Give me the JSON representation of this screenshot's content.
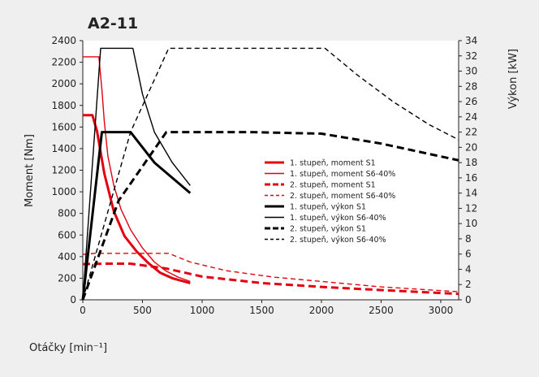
{
  "chart_data": {
    "type": "line",
    "title": "A2-11",
    "xlabel": "Otáčky [min⁻¹]",
    "ylabel_left": "Moment [Nm]",
    "ylabel_right": "Výkon [kW]",
    "xlim": [
      0,
      3150
    ],
    "ylim_left": [
      0,
      2400
    ],
    "ylim_right": [
      0,
      34
    ],
    "x_ticks": [
      0,
      500,
      1000,
      1500,
      2000,
      2500,
      3000
    ],
    "y_ticks_left": [
      0,
      200,
      400,
      600,
      800,
      1000,
      1200,
      1400,
      1600,
      1800,
      2000,
      2200,
      2400
    ],
    "y_ticks_right": [
      0,
      2,
      4,
      6,
      8,
      10,
      12,
      14,
      16,
      18,
      20,
      22,
      24,
      26,
      28,
      30,
      32,
      34
    ],
    "grid": false,
    "legend_position": "center-right",
    "series": [
      {
        "name": "1. stupeň, moment S1",
        "axis": "left",
        "color": "#e3000f",
        "style": "thick",
        "x": [
          0,
          80,
          120,
          180,
          260,
          350,
          450,
          550,
          650,
          750,
          900
        ],
        "y": [
          1710,
          1710,
          1560,
          1170,
          820,
          590,
          450,
          340,
          250,
          200,
          155
        ]
      },
      {
        "name": "1. stupeň, moment S6-40%",
        "axis": "left",
        "color": "#e3000f",
        "style": "thin",
        "x": [
          0,
          135,
          160,
          180,
          210,
          260,
          320,
          400,
          500,
          600,
          700,
          800,
          900
        ],
        "y": [
          2250,
          2250,
          1950,
          1650,
          1330,
          1060,
          840,
          650,
          480,
          350,
          265,
          210,
          170
        ]
      },
      {
        "name": "2. stupeň, moment S1",
        "axis": "left",
        "color": "#e3000f",
        "style": "thick-dashed",
        "x": [
          0,
          200,
          400,
          700,
          1000,
          1500,
          2000,
          2500,
          3150
        ],
        "y": [
          330,
          335,
          335,
          290,
          215,
          155,
          120,
          90,
          55
        ]
      },
      {
        "name": "2. stupeň, moment S6-40%",
        "axis": "left",
        "color": "#e3000f",
        "style": "thin-dashed",
        "x": [
          0,
          100,
          300,
          500,
          720,
          900,
          1200,
          1600,
          2000,
          2500,
          3150
        ],
        "y": [
          420,
          430,
          430,
          430,
          430,
          350,
          270,
          210,
          170,
          120,
          75
        ]
      },
      {
        "name": "1. stupeň, výkon S1",
        "axis": "right",
        "color": "#000000",
        "style": "thick",
        "x": [
          0,
          160,
          400,
          600,
          900
        ],
        "y": [
          0,
          22,
          22,
          18,
          14
        ]
      },
      {
        "name": "1. stupeň, výkon S6-40%",
        "axis": "right",
        "color": "#000000",
        "style": "thin",
        "x": [
          0,
          150,
          420,
          500,
          600,
          750,
          900
        ],
        "y": [
          0,
          33,
          33,
          27,
          22,
          18,
          15
        ]
      },
      {
        "name": "2. stupeň, výkon S1",
        "axis": "right",
        "color": "#000000",
        "style": "thick-dashed",
        "x": [
          0,
          300,
          700,
          1400,
          2000,
          2500,
          3150
        ],
        "y": [
          0,
          13,
          22,
          22,
          21.8,
          20.5,
          18.3
        ]
      },
      {
        "name": "2. stupeň, výkon S6-40%",
        "axis": "right",
        "color": "#000000",
        "style": "thin-dashed",
        "x": [
          0,
          400,
          720,
          2030,
          2300,
          2600,
          2900,
          3150
        ],
        "y": [
          0,
          22,
          33,
          33,
          29.5,
          26,
          23,
          21
        ]
      }
    ]
  }
}
